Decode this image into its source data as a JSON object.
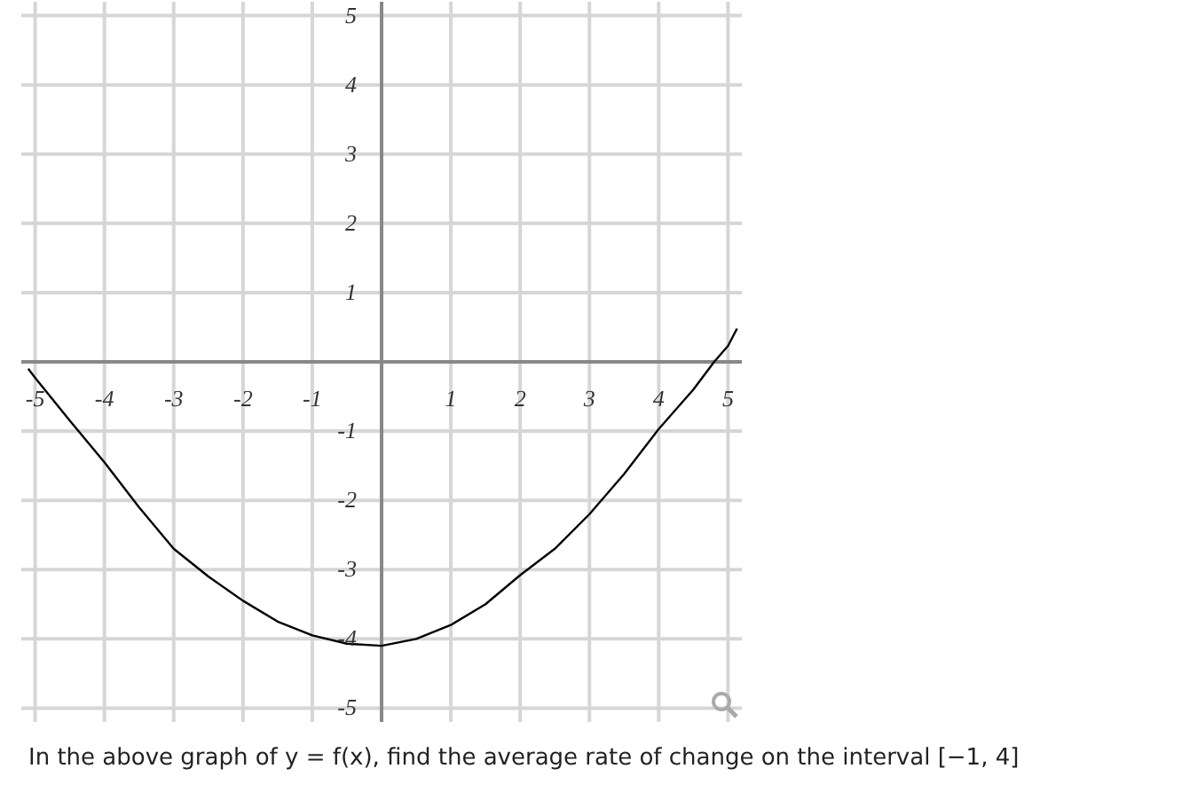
{
  "chart_data": {
    "type": "line",
    "x": [
      -5.1,
      -5,
      -4.5,
      -4,
      -3.5,
      -3,
      -2.5,
      -2,
      -1.5,
      -1,
      -0.5,
      0,
      0.5,
      1,
      1.5,
      2,
      2.5,
      3,
      3.5,
      4,
      4.5,
      4.8,
      5,
      5.13
    ],
    "values": [
      -0.1,
      -0.23,
      -0.85,
      -1.45,
      -2.1,
      -2.7,
      -3.1,
      -3.45,
      -3.75,
      -3.95,
      -4.07,
      -4.1,
      -4.0,
      -3.8,
      -3.5,
      -3.08,
      -2.7,
      -2.2,
      -1.62,
      -0.97,
      -0.4,
      0,
      0.23,
      0.48
    ],
    "color": "#000000",
    "marker": "none",
    "line_style": "solid",
    "xlim": [
      -5.2,
      5.2
    ],
    "ylim": [
      -5.2,
      5.2
    ],
    "xticks": [
      -5,
      -4,
      -3,
      -2,
      -1,
      1,
      2,
      3,
      4,
      5
    ],
    "yticks": [
      -5,
      -4,
      -3,
      -2,
      -1,
      1,
      2,
      3,
      4,
      5
    ],
    "grid": true,
    "annotations": [
      "In the above graph of y = f(x), find the average rate of change on the interval [−1, 4]"
    ]
  }
}
